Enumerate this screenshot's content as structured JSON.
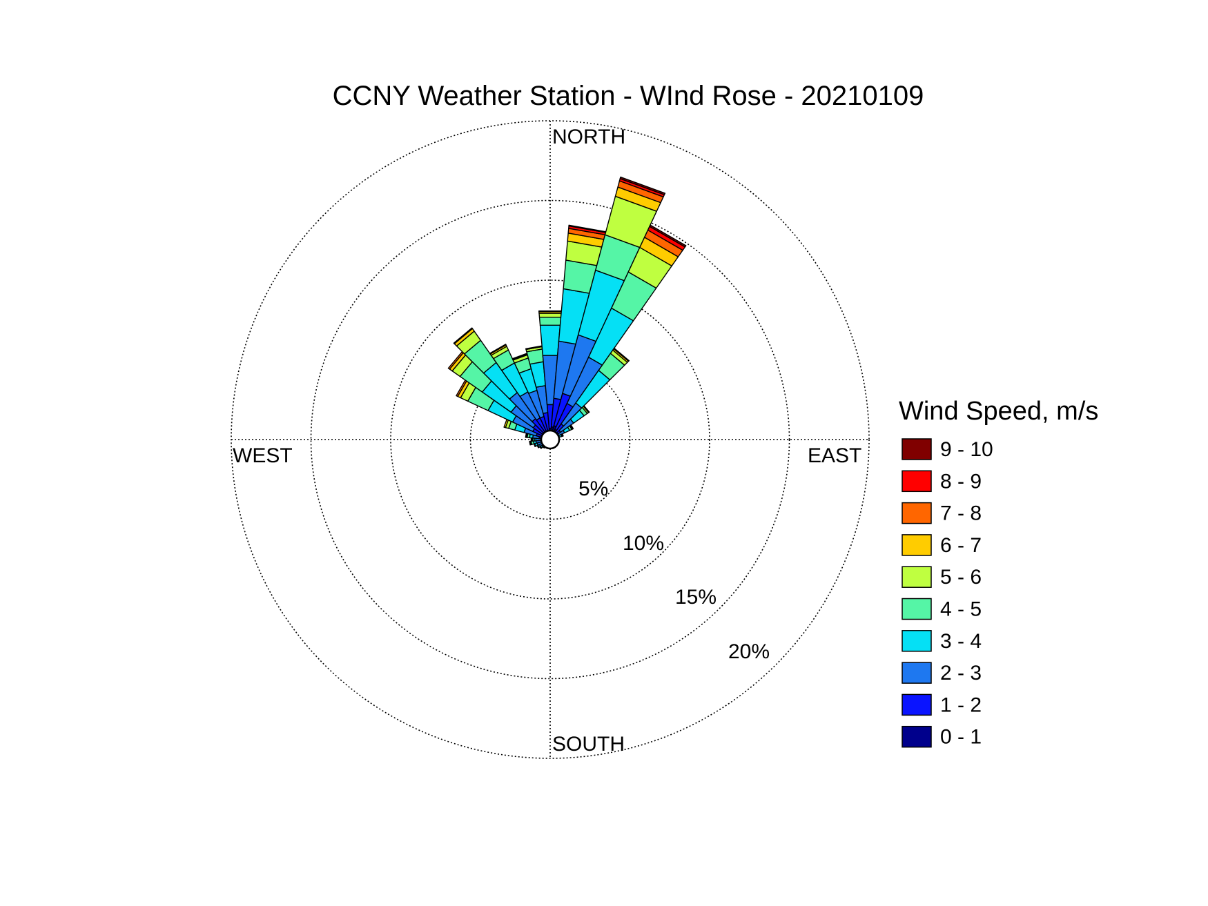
{
  "chart_data": {
    "type": "wind-rose",
    "title": "CCNY Weather Station - WInd Rose - 20210109",
    "direction_labels": {
      "north": "NORTH",
      "east": "EAST",
      "south": "SOUTH",
      "west": "WEST"
    },
    "radial_axis": {
      "unit": "%",
      "rings": [
        5,
        10,
        15,
        20
      ],
      "ring_labels": [
        "5%",
        "10%",
        "15%",
        "20%"
      ],
      "max": 20,
      "grid": true,
      "grid_style": "dotted"
    },
    "legend": {
      "title": "Wind Speed, m/s",
      "placement": "right",
      "bins": [
        {
          "label": "9 - 10",
          "color": "#800000"
        },
        {
          "label": "8 - 9",
          "color": "#ff0000"
        },
        {
          "label": "7 - 8",
          "color": "#ff6600"
        },
        {
          "label": "6 - 7",
          "color": "#ffcc00"
        },
        {
          "label": "5 - 6",
          "color": "#bfff40"
        },
        {
          "label": "4 - 5",
          "color": "#55f5a6"
        },
        {
          "label": "3 - 4",
          "color": "#05e0f5"
        },
        {
          "label": "2 - 3",
          "color": "#1e78f0"
        },
        {
          "label": "1 - 2",
          "color": "#0a14ff"
        },
        {
          "label": "0 - 1",
          "color": "#00008c"
        }
      ]
    },
    "sector_width_deg": 10,
    "stack_order": [
      "0 - 1",
      "1 - 2",
      "2 - 3",
      "3 - 4",
      "4 - 5",
      "5 - 6",
      "6 - 7",
      "7 - 8",
      "8 - 9",
      "9 - 10"
    ],
    "series": [
      {
        "direction": 260,
        "cumulative_pct": [
          0.3,
          0.6,
          0.9,
          1.05,
          1.2,
          1.25,
          1.3,
          1.3,
          1.3,
          1.3
        ]
      },
      {
        "direction": 270,
        "cumulative_pct": [
          0.3,
          0.6,
          0.9,
          1.0,
          1.1,
          1.15,
          1.2,
          1.2,
          1.2,
          1.2
        ]
      },
      {
        "direction": 280,
        "cumulative_pct": [
          0.35,
          0.7,
          1.1,
          1.3,
          1.45,
          1.5,
          1.55,
          1.55,
          1.55,
          1.55
        ]
      },
      {
        "direction": 290,
        "cumulative_pct": [
          0.4,
          0.9,
          1.7,
          2.3,
          2.7,
          2.9,
          3.0,
          3.0,
          3.0,
          3.0
        ]
      },
      {
        "direction": 300,
        "cumulative_pct": [
          0.5,
          1.2,
          2.6,
          4.3,
          5.7,
          6.2,
          6.4,
          6.5,
          6.5,
          6.5
        ]
      },
      {
        "direction": 310,
        "cumulative_pct": [
          0.5,
          1.3,
          3.0,
          5.2,
          6.9,
          7.5,
          7.7,
          7.8,
          7.8,
          7.8
        ]
      },
      {
        "direction": 320,
        "cumulative_pct": [
          0.6,
          1.6,
          3.6,
          5.9,
          7.6,
          8.3,
          8.5,
          8.55,
          8.55,
          8.55
        ]
      },
      {
        "direction": 330,
        "cumulative_pct": [
          0.5,
          1.5,
          3.3,
          5.3,
          6.2,
          6.45,
          6.55,
          6.6,
          6.6,
          6.6
        ]
      },
      {
        "direction": 340,
        "cumulative_pct": [
          0.5,
          1.5,
          3.2,
          4.6,
          5.3,
          5.5,
          5.55,
          5.6,
          5.6,
          5.6
        ]
      },
      {
        "direction": 350,
        "cumulative_pct": [
          0.6,
          1.7,
          3.4,
          4.9,
          5.7,
          5.85,
          5.9,
          5.9,
          5.9,
          5.9
        ]
      },
      {
        "direction": 0,
        "cumulative_pct": [
          0.7,
          2.2,
          5.3,
          7.2,
          7.7,
          7.95,
          8.05,
          8.1,
          8.1,
          8.1
        ]
      },
      {
        "direction": 10,
        "cumulative_pct": [
          0.8,
          2.6,
          6.2,
          9.5,
          11.3,
          12.5,
          13.0,
          13.3,
          13.45,
          13.5
        ]
      },
      {
        "direction": 20,
        "cumulative_pct": [
          0.9,
          3.0,
          6.8,
          11.0,
          13.3,
          15.8,
          16.4,
          16.8,
          16.95,
          17.05
        ]
      },
      {
        "direction": 30,
        "cumulative_pct": [
          0.7,
          2.5,
          5.7,
          9.1,
          11.6,
          13.3,
          14.0,
          14.5,
          14.75,
          14.85
        ]
      },
      {
        "direction": 40,
        "cumulative_pct": [
          0.5,
          1.2,
          2.8,
          5.3,
          6.6,
          6.85,
          6.95,
          7.0,
          7.0,
          7.0
        ]
      },
      {
        "direction": 50,
        "cumulative_pct": [
          0.4,
          0.8,
          1.8,
          2.6,
          2.85,
          2.95,
          3.0,
          3.0,
          3.0,
          3.0
        ]
      },
      {
        "direction": 60,
        "cumulative_pct": [
          0.3,
          0.6,
          1.0,
          1.35,
          1.5,
          1.55,
          1.6,
          1.6,
          1.6,
          1.6
        ]
      },
      {
        "direction": 70,
        "cumulative_pct": [
          0.25,
          0.4,
          0.6,
          0.75,
          0.8,
          0.85,
          0.85,
          0.85,
          0.85,
          0.85
        ]
      },
      {
        "direction": 80,
        "cumulative_pct": [
          0.2,
          0.3,
          0.4,
          0.45,
          0.5,
          0.5,
          0.5,
          0.5,
          0.5,
          0.5
        ]
      },
      {
        "direction": 90,
        "cumulative_pct": [
          0.15,
          0.25,
          0.3,
          0.35,
          0.35,
          0.35,
          0.35,
          0.35,
          0.35,
          0.35
        ]
      },
      {
        "direction": 100,
        "cumulative_pct": [
          0.15,
          0.2,
          0.25,
          0.3,
          0.3,
          0.3,
          0.3,
          0.3,
          0.3,
          0.3
        ]
      },
      {
        "direction": 110,
        "cumulative_pct": [
          0.15,
          0.2,
          0.25,
          0.25,
          0.25,
          0.25,
          0.25,
          0.25,
          0.25,
          0.25
        ]
      },
      {
        "direction": 120,
        "cumulative_pct": [
          0.15,
          0.2,
          0.2,
          0.2,
          0.2,
          0.2,
          0.2,
          0.2,
          0.2,
          0.2
        ]
      },
      {
        "direction": 130,
        "cumulative_pct": [
          0.15,
          0.2,
          0.2,
          0.2,
          0.2,
          0.2,
          0.2,
          0.2,
          0.2,
          0.2
        ]
      },
      {
        "direction": 140,
        "cumulative_pct": [
          0.15,
          0.2,
          0.2,
          0.2,
          0.2,
          0.2,
          0.2,
          0.2,
          0.2,
          0.2
        ]
      },
      {
        "direction": 150,
        "cumulative_pct": [
          0.15,
          0.15,
          0.15,
          0.15,
          0.15,
          0.15,
          0.15,
          0.15,
          0.15,
          0.15
        ]
      },
      {
        "direction": 160,
        "cumulative_pct": [
          0.15,
          0.15,
          0.15,
          0.15,
          0.15,
          0.15,
          0.15,
          0.15,
          0.15,
          0.15
        ]
      },
      {
        "direction": 170,
        "cumulative_pct": [
          0.15,
          0.2,
          0.2,
          0.2,
          0.2,
          0.2,
          0.2,
          0.2,
          0.2,
          0.2
        ]
      },
      {
        "direction": 180,
        "cumulative_pct": [
          0.15,
          0.2,
          0.2,
          0.2,
          0.2,
          0.2,
          0.2,
          0.2,
          0.2,
          0.2
        ]
      },
      {
        "direction": 190,
        "cumulative_pct": [
          0.2,
          0.25,
          0.25,
          0.25,
          0.25,
          0.25,
          0.25,
          0.25,
          0.25,
          0.25
        ]
      },
      {
        "direction": 200,
        "cumulative_pct": [
          0.2,
          0.3,
          0.35,
          0.35,
          0.35,
          0.35,
          0.35,
          0.35,
          0.35,
          0.35
        ]
      },
      {
        "direction": 210,
        "cumulative_pct": [
          0.25,
          0.4,
          0.5,
          0.55,
          0.55,
          0.55,
          0.55,
          0.55,
          0.55,
          0.55
        ]
      },
      {
        "direction": 220,
        "cumulative_pct": [
          0.25,
          0.45,
          0.55,
          0.65,
          0.65,
          0.65,
          0.65,
          0.65,
          0.65,
          0.65
        ]
      },
      {
        "direction": 230,
        "cumulative_pct": [
          0.3,
          0.5,
          0.65,
          0.75,
          0.8,
          0.8,
          0.8,
          0.8,
          0.8,
          0.8
        ]
      },
      {
        "direction": 240,
        "cumulative_pct": [
          0.3,
          0.55,
          0.75,
          0.85,
          0.9,
          0.9,
          0.9,
          0.9,
          0.9,
          0.9
        ]
      },
      {
        "direction": 250,
        "cumulative_pct": [
          0.3,
          0.6,
          0.85,
          1.0,
          1.05,
          1.05,
          1.05,
          1.05,
          1.05,
          1.05
        ]
      }
    ]
  }
}
